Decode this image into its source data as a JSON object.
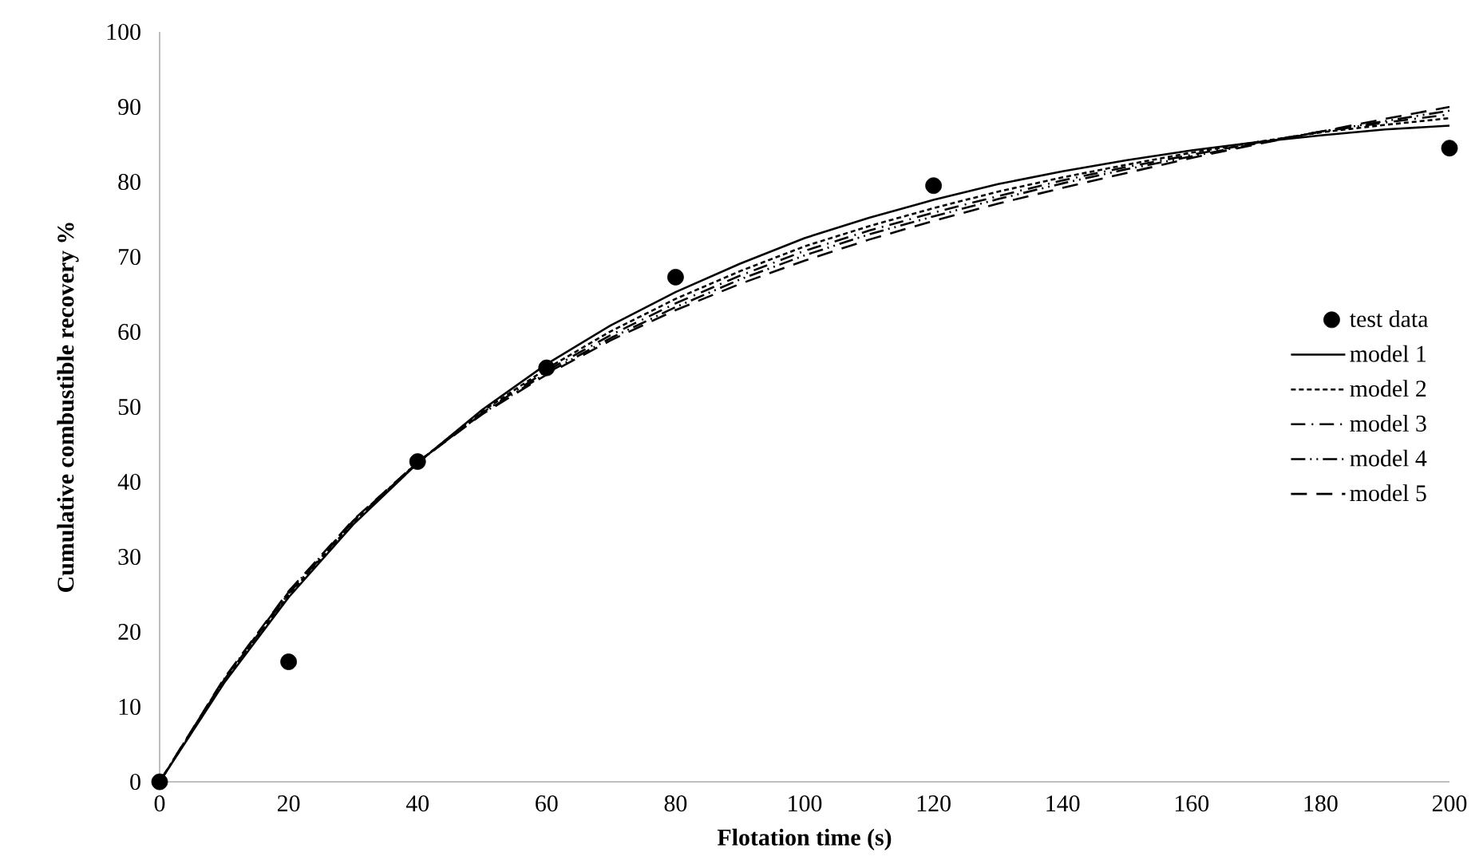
{
  "chart_data": {
    "type": "line",
    "xlabel": "Flotation time (s)",
    "ylabel": "Cumulative combustible recovery %",
    "xlim": [
      0,
      200
    ],
    "ylim": [
      0,
      100
    ],
    "xticks": [
      0,
      20,
      40,
      60,
      80,
      100,
      120,
      140,
      160,
      180,
      200
    ],
    "yticks": [
      0,
      10,
      20,
      30,
      40,
      50,
      60,
      70,
      80,
      90,
      100
    ],
    "grid": false,
    "legend": "right",
    "series": [
      {
        "name": "test data",
        "type": "scatter",
        "marker": "circle",
        "color": "#000000",
        "x": [
          0,
          20,
          40,
          60,
          80,
          120,
          200
        ],
        "values": [
          0,
          16,
          42.7,
          55.2,
          67.3,
          79.5,
          84.5
        ]
      },
      {
        "name": "model 1",
        "line_style": "solid",
        "color": "#000000",
        "x": [
          0,
          10,
          20,
          30,
          40,
          50,
          60,
          70,
          80,
          90,
          100,
          110,
          120,
          130,
          140,
          150,
          160,
          170,
          180,
          190,
          200
        ],
        "values": [
          0,
          13.2,
          24.6,
          34.3,
          42.5,
          49.6,
          55.7,
          60.9,
          65.3,
          69.1,
          72.5,
          75.2,
          77.6,
          79.7,
          81.4,
          82.9,
          84.2,
          85.3,
          86.2,
          87.0,
          87.5
        ]
      },
      {
        "name": "model 2",
        "line_style": "dashed",
        "color": "#000000",
        "x": [
          0,
          10,
          20,
          30,
          40,
          50,
          60,
          70,
          80,
          90,
          100,
          110,
          120,
          130,
          140,
          150,
          160,
          170,
          180,
          190,
          200
        ],
        "values": [
          0,
          13.4,
          24.9,
          34.6,
          42.6,
          49.4,
          55.1,
          60.1,
          64.4,
          68.1,
          71.4,
          74.1,
          76.5,
          78.7,
          80.6,
          82.3,
          83.9,
          85.3,
          86.6,
          87.6,
          88.5
        ]
      },
      {
        "name": "model 3",
        "line_style": "dashdot",
        "color": "#000000",
        "x": [
          0,
          10,
          20,
          30,
          40,
          50,
          60,
          70,
          80,
          90,
          100,
          110,
          120,
          130,
          140,
          150,
          160,
          170,
          180,
          190,
          200
        ],
        "values": [
          0,
          13.6,
          25.1,
          34.7,
          42.6,
          49.2,
          54.8,
          59.6,
          63.8,
          67.5,
          70.8,
          73.5,
          75.9,
          78.1,
          80.2,
          82.0,
          83.6,
          85.2,
          86.7,
          87.9,
          89.0
        ]
      },
      {
        "name": "model 4",
        "line_style": "dashdotdot",
        "color": "#000000",
        "x": [
          0,
          10,
          20,
          30,
          40,
          50,
          60,
          70,
          80,
          90,
          100,
          110,
          120,
          130,
          140,
          150,
          160,
          170,
          180,
          190,
          200
        ],
        "values": [
          0,
          13.7,
          25.3,
          34.8,
          42.6,
          49.1,
          54.5,
          59.2,
          63.3,
          67.0,
          70.2,
          73.0,
          75.4,
          77.7,
          79.8,
          81.7,
          83.4,
          85.1,
          86.7,
          88.1,
          89.5
        ]
      },
      {
        "name": "model 5",
        "line_style": "longdashed",
        "color": "#000000",
        "x": [
          0,
          10,
          20,
          30,
          40,
          50,
          60,
          70,
          80,
          90,
          100,
          110,
          120,
          130,
          140,
          150,
          160,
          170,
          180,
          190,
          200
        ],
        "values": [
          0,
          13.8,
          25.4,
          34.9,
          42.6,
          49.0,
          54.3,
          58.9,
          62.9,
          66.4,
          69.5,
          72.3,
          74.8,
          77.1,
          79.2,
          81.2,
          83.2,
          85.0,
          86.7,
          88.4,
          90.0
        ]
      }
    ]
  }
}
